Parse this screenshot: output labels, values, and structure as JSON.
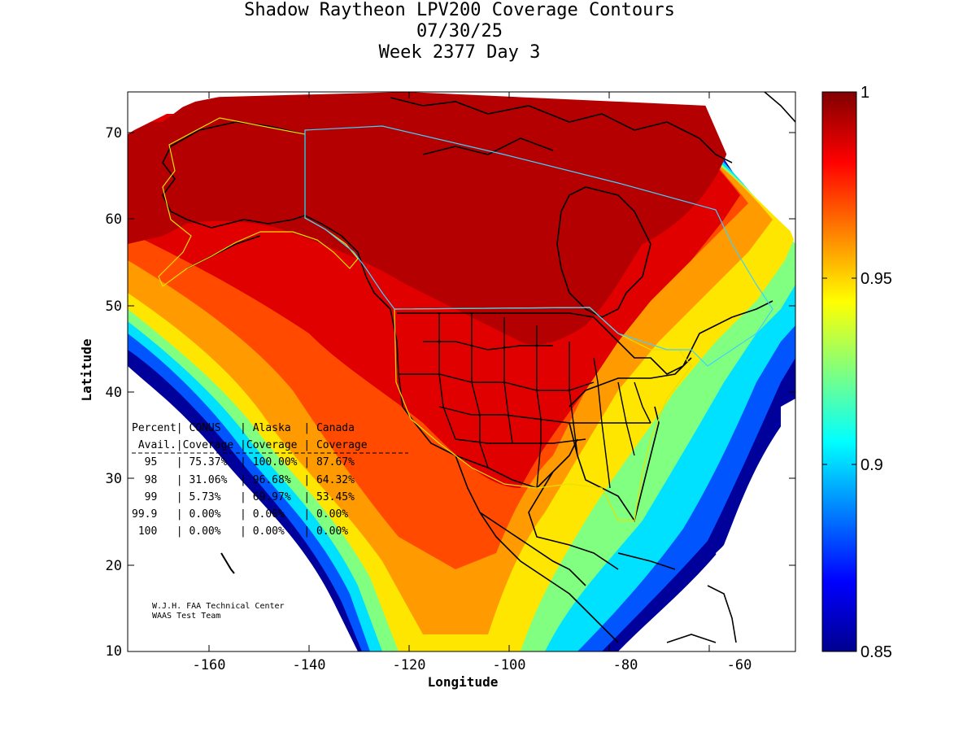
{
  "title": {
    "line1": "Shadow Raytheon LPV200 Coverage Contours",
    "line2": "07/30/25",
    "line3": "Week 2377 Day 3"
  },
  "axes": {
    "xlabel": "Longitude",
    "ylabel": "Latitude",
    "xlim": [
      -175,
      -50
    ],
    "ylim": [
      10,
      75
    ],
    "xticks": [
      "-160",
      "-140",
      "-120",
      "-100",
      "-80",
      "-60"
    ],
    "yticks": [
      "10",
      "20",
      "30",
      "40",
      "50",
      "60",
      "70"
    ]
  },
  "colorbar": {
    "range": [
      0.85,
      1
    ],
    "ticks": [
      "1",
      "0.95",
      "0.9",
      "0.85"
    ]
  },
  "table": {
    "header1": "Percent| CONUS   | Alaska  | Canada",
    "header2": " Avail.|Coverage |Coverage | Coverage",
    "rows": [
      "  95   | 75.37%  | 100.00% | 87.67%",
      "  98   | 31.06%  | 96.68%  | 64.32%",
      "  99   | 5.73%   | 69.97%  | 53.45%",
      "99.9   | 0.00%   | 0.00%   | 0.00%",
      " 100   | 0.00%   | 0.00%   | 0.00%"
    ]
  },
  "credit": {
    "line1": "W.J.H. FAA Technical Center",
    "line2": "WAAS Test Team"
  },
  "chart_data": {
    "type": "heatmap",
    "title": "Shadow Raytheon LPV200 Coverage Contours",
    "xlabel": "Longitude",
    "ylabel": "Latitude",
    "xlim": [
      -175,
      -50
    ],
    "ylim": [
      10,
      75
    ],
    "zlim": [
      0.85,
      1
    ],
    "colormap": "jet",
    "coverage_table": [
      {
        "percent_avail": "95",
        "conus": "75.37%",
        "alaska": "100.00%",
        "canada": "87.67%"
      },
      {
        "percent_avail": "98",
        "conus": "31.06%",
        "alaska": "96.68%",
        "canada": "64.32%"
      },
      {
        "percent_avail": "99",
        "conus": "5.73%",
        "alaska": "69.97%",
        "canada": "53.45%"
      },
      {
        "percent_avail": "99.9",
        "conus": "0.00%",
        "alaska": "0.00%",
        "canada": "0.00%"
      },
      {
        "percent_avail": "100",
        "conus": "0.00%",
        "alaska": "0.00%",
        "canada": "0.00%"
      }
    ]
  }
}
